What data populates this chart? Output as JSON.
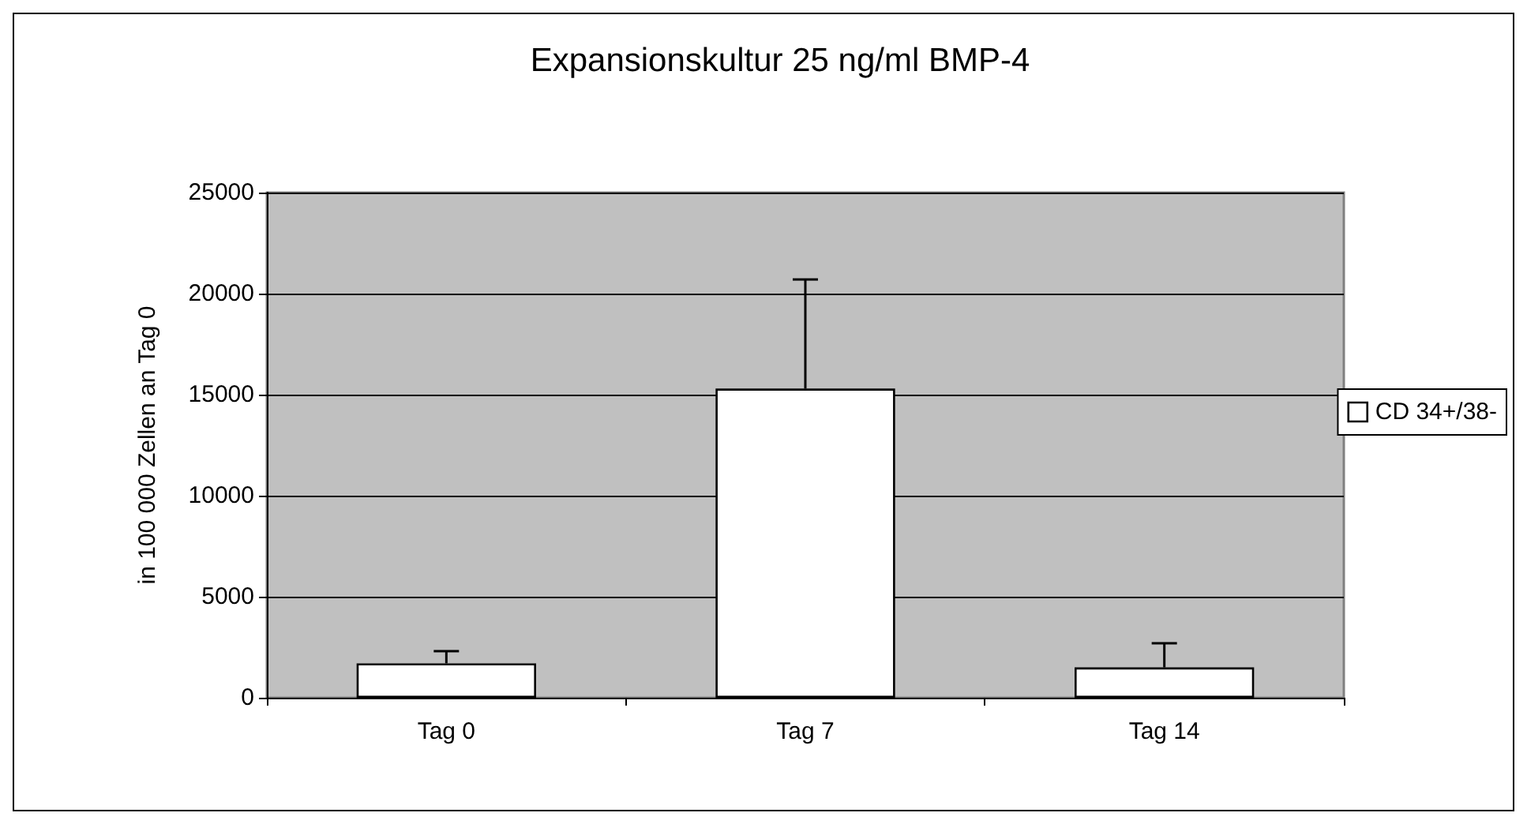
{
  "chart_data": {
    "type": "bar",
    "title": "Expansionskultur 25 ng/ml BMP-4",
    "ylabel": "in 100 000 Zellen an Tag 0",
    "categories": [
      "Tag 0",
      "Tag 7",
      "Tag 14"
    ],
    "series": [
      {
        "name": "CD 34+/38-",
        "color": "#ffffff",
        "values": [
          1700,
          15300,
          1500
        ],
        "errors": [
          [
            1700,
            2300
          ],
          [
            15300,
            20700
          ],
          [
            1500,
            2700
          ]
        ]
      }
    ],
    "ylim": [
      0,
      25000
    ],
    "yticks": [
      0,
      5000,
      10000,
      15000,
      20000,
      25000
    ],
    "grid": "y",
    "legend": "right"
  }
}
